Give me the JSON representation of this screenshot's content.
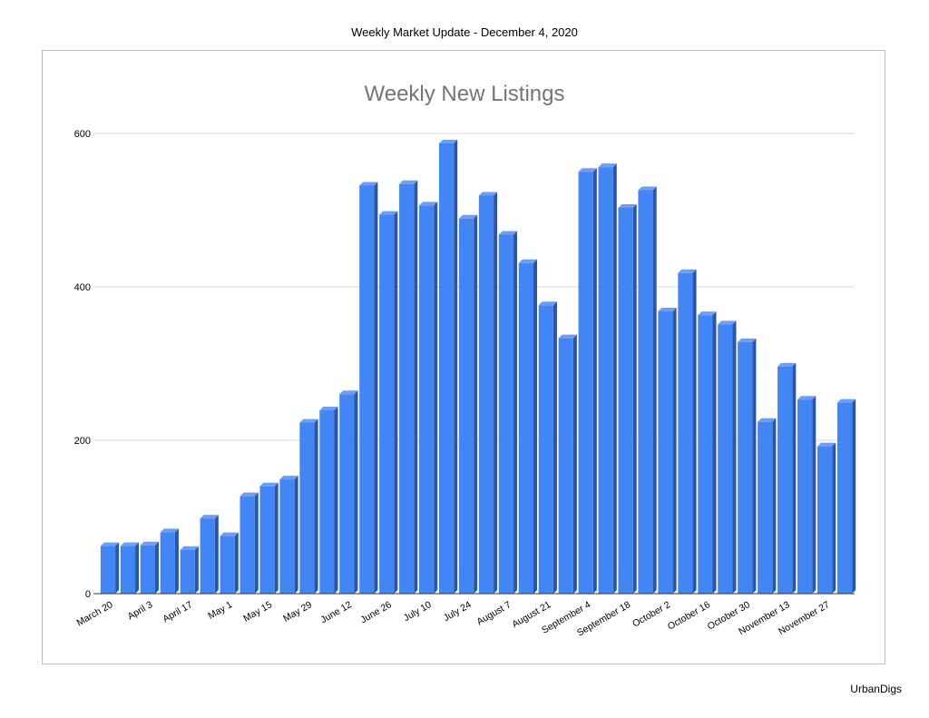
{
  "page": {
    "header": "Weekly Market Update - December 4, 2020",
    "footer": "UrbanDigs"
  },
  "colors": {
    "bar_front": "#4285f4",
    "bar_side": "#2a56a8",
    "bar_top": "#6c9ef7",
    "grid": "#d9d9d9",
    "axis": "#333333",
    "title": "#757575"
  },
  "chart_data": {
    "type": "bar",
    "title": "Weekly New Listings",
    "xlabel": "",
    "ylabel": "",
    "ylim": [
      0,
      600
    ],
    "yticks": [
      0,
      200,
      400,
      600
    ],
    "grid": true,
    "categories": [
      "March 20",
      "",
      "April 3",
      "",
      "April 17",
      "",
      "May 1",
      "",
      "May 15",
      "",
      "May 29",
      "",
      "June 12",
      "",
      "June 26",
      "",
      "July 10",
      "",
      "July 24",
      "",
      "August 7",
      "",
      "August 21",
      "",
      "September 4",
      "",
      "September 18",
      "",
      "October 2",
      "",
      "October 16",
      "",
      "October 30",
      "",
      "November 13",
      "",
      "November 27",
      ""
    ],
    "values": [
      62,
      62,
      63,
      80,
      57,
      98,
      75,
      127,
      140,
      149,
      223,
      239,
      260,
      532,
      494,
      534,
      506,
      587,
      489,
      519,
      468,
      431,
      376,
      333,
      550,
      556,
      503,
      526,
      368,
      418,
      363,
      351,
      328,
      224,
      296,
      253,
      192,
      249
    ]
  }
}
